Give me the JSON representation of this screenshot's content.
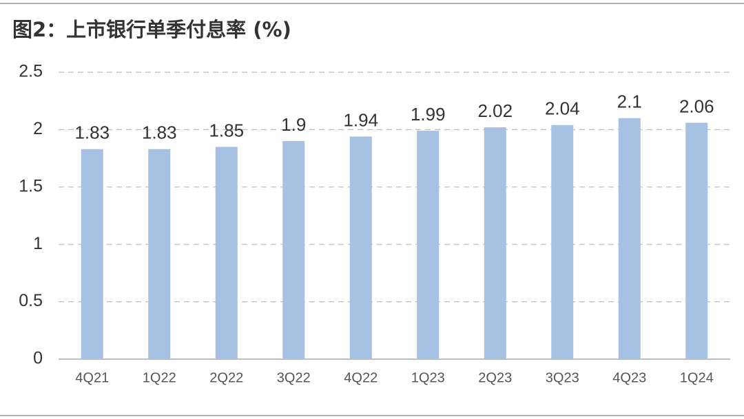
{
  "chart_data": {
    "type": "bar",
    "title": "图2：上市银行单季付息率 (%)",
    "categories": [
      "4Q21",
      "1Q22",
      "2Q22",
      "3Q22",
      "4Q22",
      "1Q23",
      "2Q23",
      "3Q23",
      "4Q23",
      "1Q24"
    ],
    "values": [
      1.83,
      1.83,
      1.85,
      1.9,
      1.94,
      1.99,
      2.02,
      2.04,
      2.1,
      2.06
    ],
    "color": "#a7c1e2",
    "ylim": [
      0,
      2.5
    ],
    "yticks": [
      0,
      0.5,
      1,
      1.5,
      2,
      2.5
    ],
    "grid": true
  }
}
